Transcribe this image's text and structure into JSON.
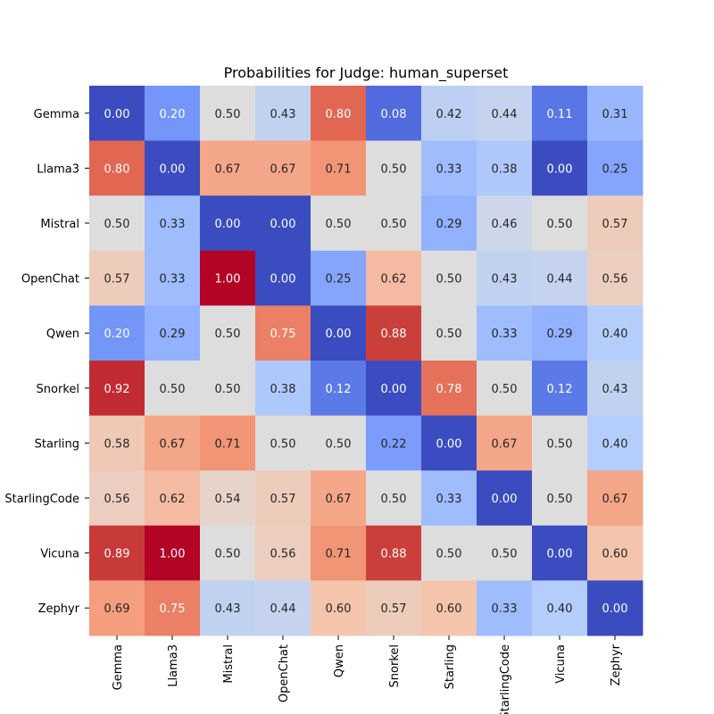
{
  "chart_data": {
    "type": "heatmap",
    "title": "Probabilities for Judge: human_superset",
    "xlabel": "",
    "ylabel": "",
    "rows": [
      "Gemma",
      "Llama3",
      "Mistral",
      "OpenChat",
      "Qwen",
      "Snorkel",
      "Starling",
      "StarlingCode",
      "Vicuna",
      "Zephyr"
    ],
    "columns": [
      "Gemma",
      "Llama3",
      "Mistral",
      "OpenChat",
      "Qwen",
      "Snorkel",
      "Starling",
      "StarlingCode",
      "Vicuna",
      "Zephyr"
    ],
    "values": [
      [
        0.0,
        0.2,
        0.5,
        0.43,
        0.8,
        0.08,
        0.42,
        0.44,
        0.11,
        0.31
      ],
      [
        0.8,
        0.0,
        0.67,
        0.67,
        0.71,
        0.5,
        0.33,
        0.38,
        0.0,
        0.25
      ],
      [
        0.5,
        0.33,
        0.0,
        0.0,
        0.5,
        0.5,
        0.29,
        0.46,
        0.5,
        0.57
      ],
      [
        0.57,
        0.33,
        1.0,
        0.0,
        0.25,
        0.62,
        0.5,
        0.43,
        0.44,
        0.56
      ],
      [
        0.2,
        0.29,
        0.5,
        0.75,
        0.0,
        0.88,
        0.5,
        0.33,
        0.29,
        0.4
      ],
      [
        0.92,
        0.5,
        0.5,
        0.38,
        0.12,
        0.0,
        0.78,
        0.5,
        0.12,
        0.43
      ],
      [
        0.58,
        0.67,
        0.71,
        0.5,
        0.5,
        0.22,
        0.0,
        0.67,
        0.5,
        0.4
      ],
      [
        0.56,
        0.62,
        0.54,
        0.57,
        0.67,
        0.5,
        0.33,
        0.0,
        0.5,
        0.67
      ],
      [
        0.89,
        1.0,
        0.5,
        0.56,
        0.71,
        0.88,
        0.5,
        0.5,
        0.0,
        0.6
      ],
      [
        0.69,
        0.75,
        0.43,
        0.44,
        0.6,
        0.57,
        0.6,
        0.33,
        0.4,
        0.0
      ]
    ],
    "value_format": "0.00",
    "colormap": "coolwarm",
    "zero_color": "#3b4cc0",
    "one_color": "#b40426",
    "grid": false,
    "legend": "none"
  }
}
